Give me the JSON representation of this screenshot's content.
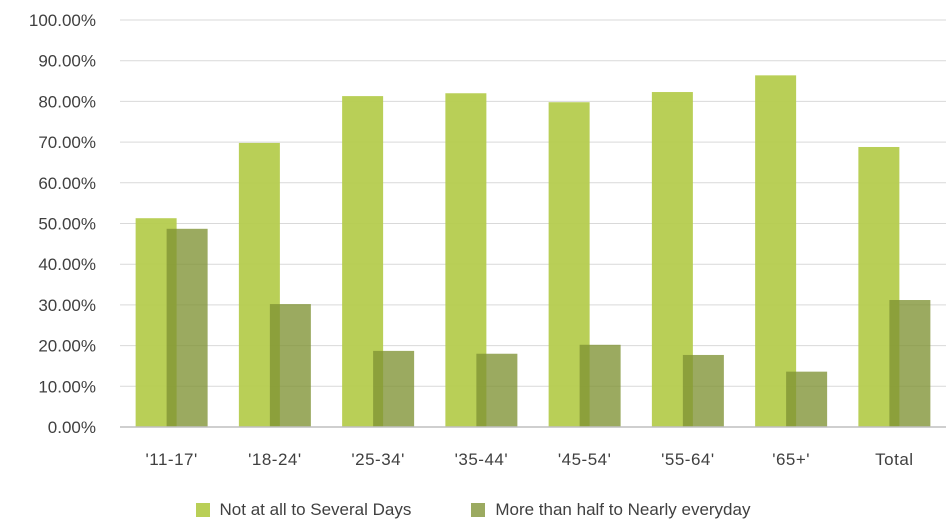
{
  "chart_data": {
    "type": "bar",
    "title": "",
    "xlabel": "",
    "ylabel": "",
    "ylim": [
      0,
      100
    ],
    "y_ticks": [
      "0.00%",
      "10.00%",
      "20.00%",
      "30.00%",
      "40.00%",
      "50.00%",
      "60.00%",
      "70.00%",
      "80.00%",
      "90.00%",
      "100.00%"
    ],
    "grid": true,
    "legend_position": "bottom",
    "categories": [
      "'11-17'",
      "'18-24'",
      "'25-34'",
      "'35-44'",
      "'45-54'",
      "'55-64'",
      "'65+'",
      "Total"
    ],
    "series": [
      {
        "name": "Not at all to Several Days",
        "color": "#b5cc4e",
        "values": [
          51.3,
          69.8,
          81.3,
          82.0,
          79.8,
          82.3,
          86.4,
          68.8
        ]
      },
      {
        "name": "More than half to Nearly everyday",
        "color": "#7f9233",
        "values": [
          48.7,
          30.2,
          18.7,
          18.0,
          20.2,
          17.7,
          13.6,
          31.2
        ]
      }
    ]
  }
}
